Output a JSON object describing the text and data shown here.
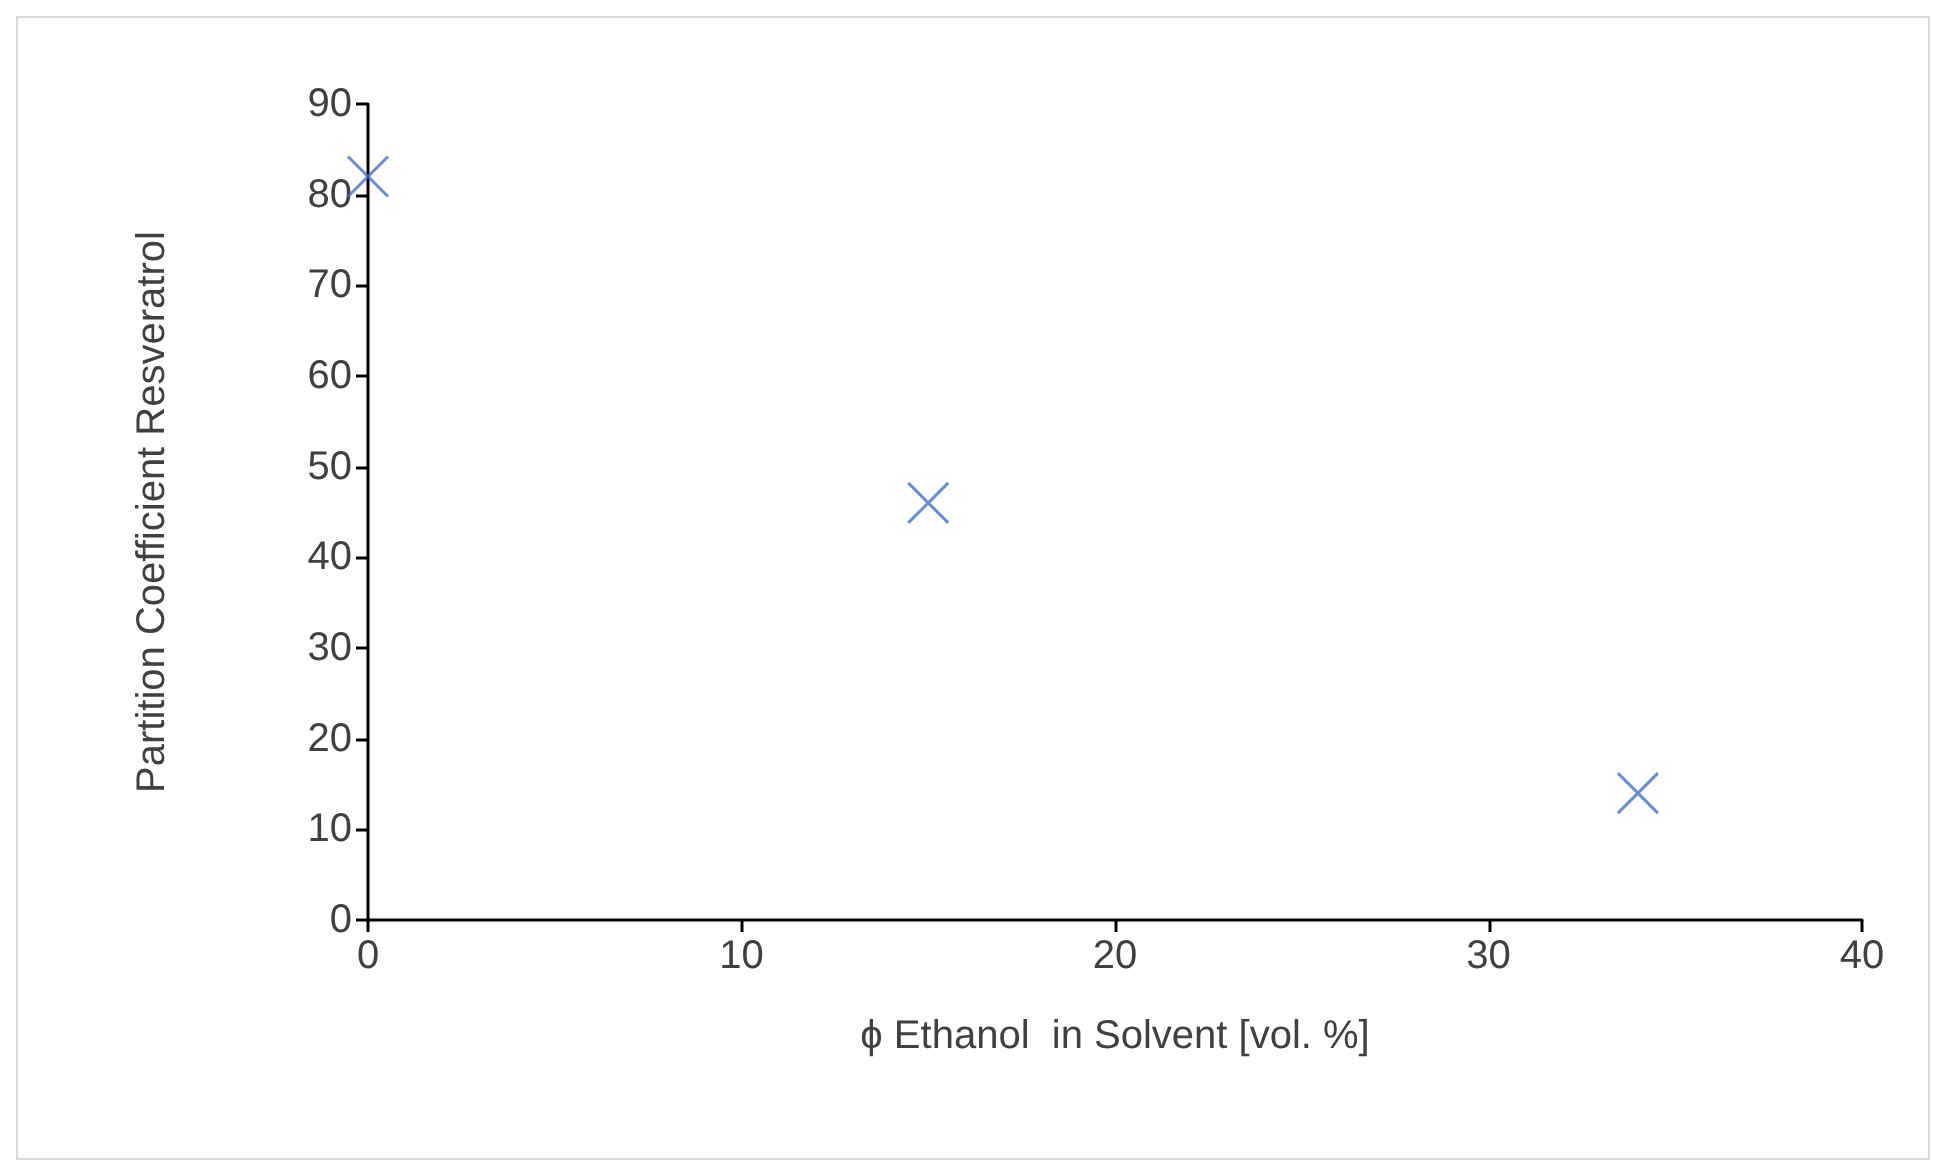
{
  "chart_data": {
    "type": "scatter",
    "xlabel": "ϕ Ethanol  in Solvent [vol. %]",
    "ylabel": "Partition Coefficient Resveratrol",
    "x": [
      0,
      15,
      34
    ],
    "series": [
      {
        "color": "#4472c4",
        "values": [
          82,
          46,
          14
        ]
      }
    ],
    "xlim": [
      0,
      40
    ],
    "xticks": [
      0,
      10,
      20,
      30,
      40
    ],
    "ylim": [
      0,
      90
    ],
    "yticks": [
      0,
      10,
      20,
      30,
      40,
      50,
      60,
      70,
      80,
      90
    ],
    "grid": false,
    "marker": "cross"
  }
}
